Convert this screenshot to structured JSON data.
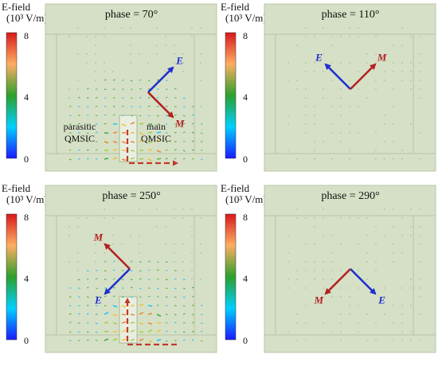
{
  "colorbar": {
    "title_line1": "E-field",
    "title_line2": "(10³ V/m)",
    "ticks": [
      "8",
      "4",
      "0"
    ],
    "colors": [
      "#d7191c",
      "#fdae61",
      "#2ca02c",
      "#00d0ff",
      "#1a1aff"
    ]
  },
  "panels": [
    {
      "phase_label": "phase = 70°",
      "E": {
        "label": "E",
        "angle_deg": 45
      },
      "M": {
        "label": "M",
        "angle_deg": -45
      },
      "annotations": [
        {
          "text1": "parasitic",
          "text2": "QMSIC",
          "where": "left"
        },
        {
          "text1": "main",
          "text2": "QMSIC",
          "where": "right"
        }
      ]
    },
    {
      "phase_label": "phase = 110°",
      "E": {
        "label": "E",
        "angle_deg": 135
      },
      "M": {
        "label": "M",
        "angle_deg": 45
      },
      "annotations": []
    },
    {
      "phase_label": "phase = 250°",
      "E": {
        "label": "E",
        "angle_deg": -135
      },
      "M": {
        "label": "M",
        "angle_deg": 135
      },
      "annotations": []
    },
    {
      "phase_label": "phase = 290°",
      "E": {
        "label": "E",
        "angle_deg": -45
      },
      "M": {
        "label": "M",
        "angle_deg": -135
      },
      "annotations": []
    }
  ],
  "colors": {
    "background": "#d6e0c6",
    "E_arrow": "#1f2fd0",
    "M_arrow": "#b22222",
    "gridline": "#b6c2a6"
  }
}
